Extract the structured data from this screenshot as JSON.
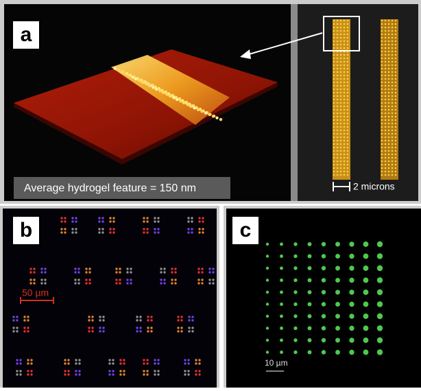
{
  "panels": {
    "a": {
      "label": "a",
      "caption": "Average hydrogel feature = 150 nm",
      "scale_bar": "2 microns"
    },
    "b": {
      "label": "b",
      "scale_bar": "50 µm"
    },
    "c": {
      "label": "c",
      "scale_bar": "10 µm"
    }
  }
}
